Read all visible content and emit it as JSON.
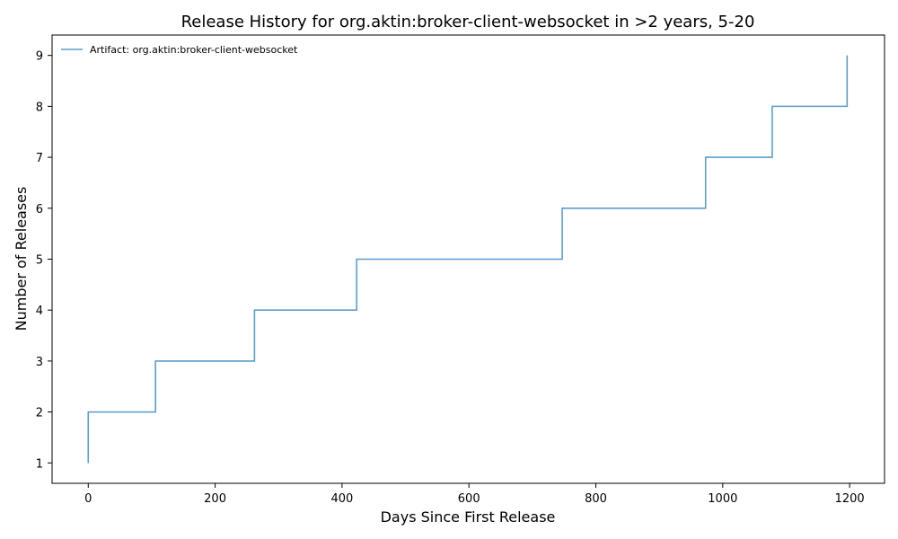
{
  "chart_data": {
    "type": "line",
    "drawstyle": "steps-post",
    "title": "Release History for org.aktin:broker-client-websocket in >2 years, 5-20",
    "xlabel": "Days Since First Release",
    "ylabel": "Number of Releases",
    "xlim": [
      -57,
      1255
    ],
    "ylim": [
      0.6,
      9.4
    ],
    "xticks": [
      0,
      200,
      400,
      600,
      800,
      1000,
      1200
    ],
    "yticks": [
      1,
      2,
      3,
      4,
      5,
      6,
      7,
      8,
      9
    ],
    "grid": false,
    "legend_position": "top-left",
    "series": [
      {
        "name": "Artifact: org.aktin:broker-client-websocket",
        "color": "#5b9ec9",
        "x": [
          0,
          0,
          80,
          106,
          262,
          423,
          747,
          973,
          1078,
          1196
        ],
        "y": [
          1,
          2,
          2,
          3,
          4,
          5,
          6,
          7,
          8,
          9
        ]
      }
    ]
  }
}
